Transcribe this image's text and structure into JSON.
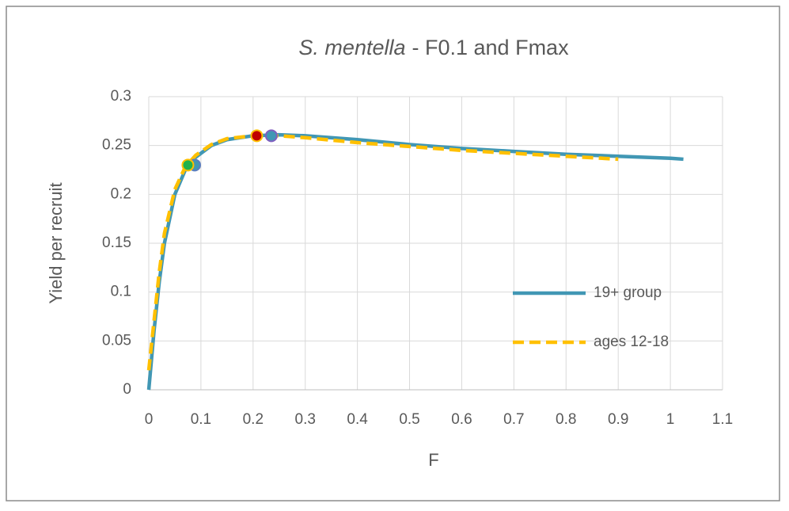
{
  "chart_data": {
    "type": "line",
    "title_parts": [
      "S. mentella",
      "- F0.1 and Fmax"
    ],
    "x_label": "F",
    "y_label": "Yield per recruit",
    "xlim": [
      0,
      1.1
    ],
    "xticks": [
      0,
      0.1,
      0.2,
      0.3,
      0.4,
      0.5,
      0.6,
      0.7,
      0.8,
      0.9,
      1,
      1.1
    ],
    "ylim": [
      0,
      0.3
    ],
    "yticks": [
      0,
      0.05,
      0.1,
      0.15,
      0.2,
      0.25,
      0.3
    ],
    "grid": true,
    "legend": "right",
    "series": [
      {
        "name": "19+ group",
        "color": "#4197b4",
        "dash": false,
        "x": [
          0,
          0.01,
          0.02,
          0.03,
          0.05,
          0.07,
          0.09,
          0.12,
          0.15,
          0.2,
          0.25,
          0.3,
          0.4,
          0.5,
          0.6,
          0.7,
          0.8,
          0.9,
          1.0,
          1.025
        ],
        "values": [
          0,
          0.06,
          0.11,
          0.15,
          0.2,
          0.225,
          0.238,
          0.25,
          0.256,
          0.26,
          0.261,
          0.26,
          0.256,
          0.251,
          0.247,
          0.244,
          0.241,
          0.239,
          0.237,
          0.236
        ]
      },
      {
        "name": "ages 12-18",
        "color": "#ffc000",
        "dash": true,
        "x": [
          0,
          0.01,
          0.02,
          0.03,
          0.05,
          0.07,
          0.09,
          0.12,
          0.15,
          0.2,
          0.25,
          0.3,
          0.4,
          0.5,
          0.6,
          0.7,
          0.8,
          0.9
        ],
        "values": [
          0.02,
          0.07,
          0.12,
          0.16,
          0.205,
          0.228,
          0.24,
          0.251,
          0.257,
          0.26,
          0.26,
          0.258,
          0.253,
          0.249,
          0.245,
          0.242,
          0.239,
          0.236
        ]
      }
    ],
    "points": [
      {
        "x": 0.088,
        "y": 0.23,
        "color": "#4197b4",
        "edge": "#5b7fbf"
      },
      {
        "x": 0.075,
        "y": 0.23,
        "color": "#22b14c",
        "edge": "#ffc000"
      },
      {
        "x": 0.235,
        "y": 0.26,
        "color": "#4197b4",
        "edge": "#7f5fbf"
      },
      {
        "x": 0.207,
        "y": 0.26,
        "color": "#c00000",
        "edge": "#ffc000"
      }
    ]
  }
}
